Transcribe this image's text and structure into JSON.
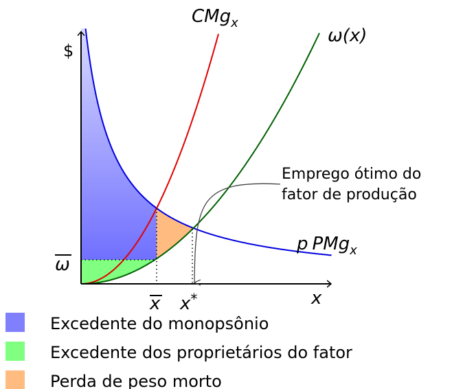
{
  "axes": {
    "y_label": "$",
    "x_label": "x"
  },
  "curves": {
    "marginal_cost": {
      "text": "CMg",
      "sub": "x"
    },
    "wage": "ω(x)",
    "marginal_product": {
      "prefix": "p",
      "text": "PMg",
      "sub": "x"
    }
  },
  "ticks": {
    "wage_bar": "ω",
    "x_bar": "x",
    "x_star": {
      "text": "x",
      "sup": "*"
    }
  },
  "annotation": [
    "Emprego ótimo do",
    "fator de produção"
  ],
  "legend": [
    {
      "label": "Excedente do monopsônio",
      "color": "#8080ff"
    },
    {
      "label": "Excedente dos proprietários do fator",
      "color": "#80ff80"
    },
    {
      "label": "Perda de peso morto",
      "color": "#ffbb80"
    }
  ]
}
